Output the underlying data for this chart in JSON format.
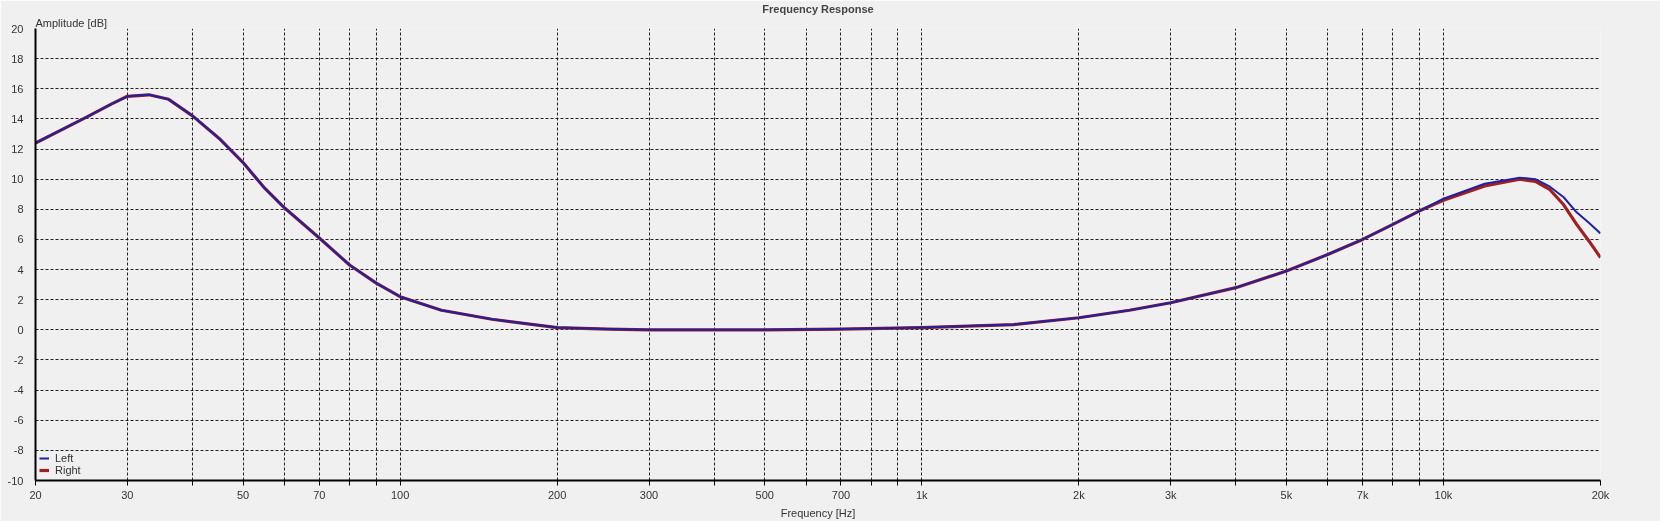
{
  "chart_data": {
    "type": "line",
    "title": "Frequency Response",
    "xlabel": "Frequency [Hz]",
    "ylabel": "Amplitude [dB]",
    "x": [
      20,
      25,
      28,
      30,
      33,
      36,
      40,
      45,
      50,
      55,
      60,
      70,
      80,
      90,
      100,
      120,
      150,
      200,
      250,
      300,
      500,
      700,
      1000,
      1500,
      2000,
      2500,
      3000,
      4000,
      5000,
      6000,
      7000,
      8000,
      9000,
      10000,
      12000,
      14000,
      15000,
      16000,
      17000,
      18000,
      19000,
      20000
    ],
    "series": [
      {
        "name": "Left",
        "color": "#2020a0",
        "values": [
          12.4,
          14.1,
          15.0,
          15.5,
          15.6,
          15.3,
          14.2,
          12.7,
          11.1,
          9.4,
          8.1,
          6.1,
          4.3,
          3.1,
          2.2,
          1.3,
          0.7,
          0.15,
          0.05,
          0,
          0,
          0.05,
          0.15,
          0.35,
          0.8,
          1.3,
          1.8,
          2.8,
          3.9,
          5.0,
          6.0,
          7.0,
          7.9,
          8.7,
          9.7,
          10.1,
          10.0,
          9.5,
          8.8,
          7.8,
          7.1,
          6.4
        ]
      },
      {
        "name": "Right",
        "color": "#a02020",
        "values": [
          12.4,
          14.1,
          15.0,
          15.5,
          15.6,
          15.3,
          14.2,
          12.7,
          11.1,
          9.4,
          8.1,
          6.1,
          4.3,
          3.1,
          2.2,
          1.3,
          0.7,
          0.15,
          0.05,
          0,
          0,
          0.05,
          0.15,
          0.35,
          0.8,
          1.3,
          1.8,
          2.8,
          3.9,
          5.0,
          6.0,
          7.0,
          7.9,
          8.6,
          9.55,
          10.0,
          9.85,
          9.3,
          8.3,
          7.0,
          5.9,
          4.8
        ]
      }
    ],
    "log": "x",
    "xlim": [
      20,
      20000
    ],
    "ylim": [
      -10,
      20
    ],
    "xticks": [
      20,
      30,
      {
        "value": 40,
        "label": null
      },
      50,
      {
        "value": 60,
        "label": null
      },
      70,
      {
        "value": 80,
        "label": null
      },
      {
        "value": 90,
        "label": null
      },
      100,
      200,
      300,
      {
        "value": 400,
        "label": null
      },
      500,
      {
        "value": 600,
        "label": null
      },
      700,
      {
        "value": 800,
        "label": null
      },
      {
        "value": 900,
        "label": null
      },
      {
        "value": 1000,
        "label": "1k"
      },
      {
        "value": 2000,
        "label": "2k"
      },
      {
        "value": 3000,
        "label": "3k"
      },
      {
        "value": 4000,
        "label": null
      },
      {
        "value": 5000,
        "label": "5k"
      },
      {
        "value": 6000,
        "label": null
      },
      {
        "value": 7000,
        "label": "7k"
      },
      {
        "value": 8000,
        "label": null
      },
      {
        "value": 9000,
        "label": null
      },
      {
        "value": 10000,
        "label": "10k"
      },
      {
        "value": 20000,
        "label": "20k"
      }
    ],
    "yticks": [
      -10,
      -8,
      -6,
      -4,
      -2,
      0,
      2,
      4,
      6,
      8,
      10,
      12,
      14,
      16,
      18,
      20
    ],
    "grid": true,
    "legend": "bottom left"
  }
}
